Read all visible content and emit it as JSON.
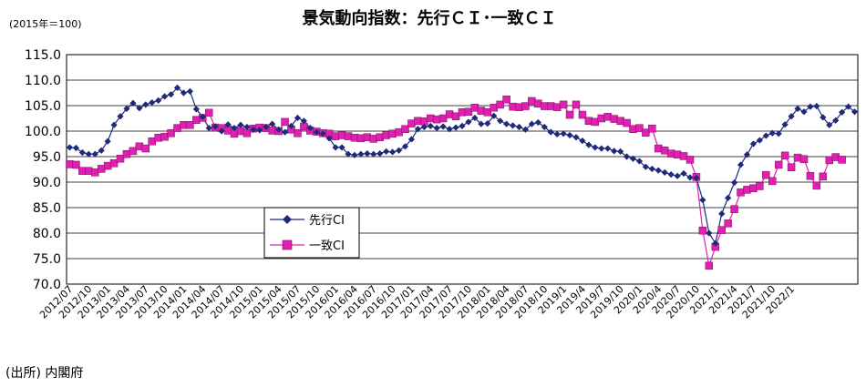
{
  "chart_data": {
    "type": "line",
    "title": "景気動向指数：先行ＣＩ･一致ＣＩ",
    "unit_label": "(2015年＝100)",
    "source": "(出所) 内閣府",
    "ylim": [
      70,
      115
    ],
    "yticks": [
      "115.0",
      "110.0",
      "105.0",
      "100.0",
      "95.0",
      "90.0",
      "85.0",
      "80.0",
      "75.0",
      "70.0"
    ],
    "grid": "horizontal",
    "legend_position": "center-left",
    "x_tick_labels": [
      "2012/07",
      "2012/10",
      "2013/01",
      "2013/04",
      "2013/07",
      "2013/10",
      "2014/01",
      "2014/04",
      "2014/07",
      "2014/10",
      "2015/01",
      "2015/04",
      "2015/07",
      "2015/10",
      "2016/01",
      "2016/04",
      "2016/07",
      "2016/10",
      "2017/01",
      "2017/04",
      "2017/07",
      "2017/10",
      "2018/01",
      "2018/04",
      "2018/07",
      "2018/10",
      "2019/1",
      "2019/4",
      "2019/7",
      "2019/10",
      "2020/1",
      "2020/4",
      "2020/7",
      "2020/10",
      "2021/1",
      "2021/4",
      "2021/7",
      "2021/10",
      "2022/1"
    ],
    "series": [
      {
        "name": "先行CI",
        "color": "#1f2a7a",
        "marker": "diamond",
        "values": [
          96.8,
          96.7,
          95.8,
          95.5,
          95.5,
          96.2,
          98.0,
          101.2,
          102.9,
          104.4,
          105.5,
          104.5,
          105.2,
          105.6,
          106.0,
          106.8,
          107.2,
          108.5,
          107.5,
          107.8,
          104.3,
          102.8,
          100.6,
          100.9,
          100.0,
          101.3,
          100.6,
          101.2,
          100.8,
          100.3,
          100.2,
          100.8,
          101.4,
          100.3,
          99.8,
          101.0,
          102.6,
          102.0,
          100.6,
          99.8,
          99.5,
          98.6,
          96.8,
          96.8,
          95.5,
          95.3,
          95.5,
          95.6,
          95.5,
          95.6,
          96.0,
          95.9,
          96.2,
          97.0,
          98.4,
          100.4,
          100.8,
          101.0,
          100.6,
          100.9,
          100.4,
          100.7,
          101.0,
          101.8,
          102.6,
          101.4,
          101.5,
          103.0,
          102.0,
          101.4,
          101.1,
          100.8,
          100.3,
          101.4,
          101.7,
          100.8,
          99.8,
          99.4,
          99.5,
          99.2,
          98.8,
          98.1,
          97.3,
          96.8,
          96.6,
          96.6,
          96.1,
          96.0,
          95.0,
          94.6,
          94.1,
          93.0,
          92.6,
          92.3,
          91.9,
          91.5,
          91.2,
          91.7,
          90.9,
          90.8,
          86.5,
          80.0,
          78.0,
          83.8,
          86.9,
          89.9,
          93.4,
          95.4,
          97.5,
          98.2,
          99.1,
          99.6,
          99.5,
          101.3,
          102.9,
          104.4,
          103.8,
          104.8,
          104.9,
          102.7,
          101.2,
          102.1,
          103.7,
          104.8,
          103.8
        ]
      },
      {
        "name": "一致CI",
        "color": "#e020b0",
        "marker": "square",
        "values": [
          93.5,
          93.4,
          92.2,
          92.2,
          91.9,
          92.6,
          93.2,
          93.7,
          94.6,
          95.5,
          96.1,
          97.0,
          96.6,
          98.0,
          98.7,
          98.9,
          99.6,
          100.6,
          101.2,
          101.2,
          102.2,
          102.6,
          103.6,
          100.7,
          100.6,
          100.1,
          99.5,
          100.0,
          99.6,
          100.5,
          100.7,
          100.6,
          100.1,
          100.0,
          101.8,
          100.3,
          99.6,
          100.9,
          100.1,
          99.9,
          99.6,
          99.5,
          99.0,
          99.2,
          99.0,
          98.7,
          98.6,
          98.8,
          98.5,
          98.8,
          99.2,
          99.5,
          99.8,
          100.4,
          101.5,
          102.0,
          101.9,
          102.5,
          102.3,
          102.5,
          103.3,
          102.9,
          103.7,
          103.8,
          104.6,
          104.0,
          103.7,
          104.6,
          105.2,
          106.2,
          104.8,
          104.7,
          104.9,
          105.9,
          105.4,
          104.9,
          104.9,
          104.7,
          105.2,
          103.2,
          105.2,
          103.2,
          102.0,
          101.8,
          102.5,
          102.8,
          102.4,
          102.0,
          101.6,
          100.4,
          100.6,
          99.7,
          100.5,
          96.6,
          96.2,
          95.6,
          95.4,
          95.1,
          94.4,
          91.0,
          80.5,
          73.6,
          77.3,
          80.6,
          81.9,
          84.7,
          88.0,
          88.5,
          88.8,
          89.2,
          91.4,
          90.2,
          93.4,
          95.2,
          92.9,
          94.8,
          94.5,
          91.2,
          89.3,
          91.1,
          94.3,
          94.9,
          94.4
        ]
      }
    ]
  }
}
